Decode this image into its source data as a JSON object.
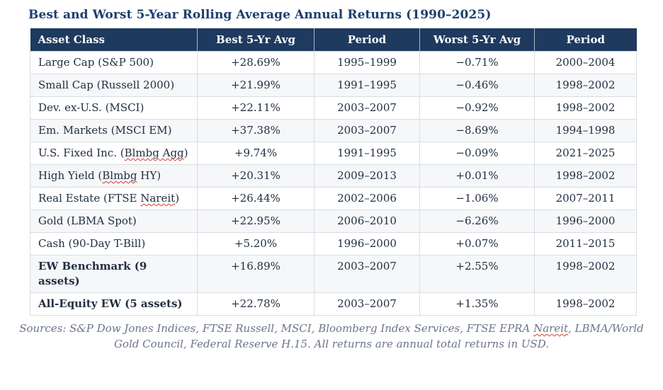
{
  "colors": {
    "header_bg": "#1e3a5f",
    "title": "#1e3d6e",
    "body_text": "#212f42",
    "alt_row": "#f6f7f9",
    "cell_border": "#d9dce1",
    "footer_text": "#6b7689",
    "spellcheck_squiggle": "#d93a2b"
  },
  "chart_data": {
    "type": "table",
    "title": "Best and Worst 5-Year Rolling Average Annual Returns (1990–2025)",
    "columns": [
      "Asset Class",
      "Best 5-Yr Avg",
      "Period",
      "Worst 5-Yr Avg",
      "Period"
    ],
    "rows": [
      {
        "asset": "Large Cap (S&P 500)",
        "best": "+28.69%",
        "best_period": "1995–1999",
        "worst": "−0.71%",
        "worst_period": "2000–2004",
        "bold": false,
        "misspelled": []
      },
      {
        "asset": "Small Cap (Russell 2000)",
        "best": "+21.99%",
        "best_period": "1991–1995",
        "worst": "−0.46%",
        "worst_period": "1998–2002",
        "bold": false,
        "misspelled": []
      },
      {
        "asset": "Dev. ex-U.S. (MSCI)",
        "best": "+22.11%",
        "best_period": "2003–2007",
        "worst": "−0.92%",
        "worst_period": "1998–2002",
        "bold": false,
        "misspelled": []
      },
      {
        "asset": "Em. Markets (MSCI EM)",
        "best": "+37.38%",
        "best_period": "2003–2007",
        "worst": "−8.69%",
        "worst_period": "1994–1998",
        "bold": false,
        "misspelled": []
      },
      {
        "asset": "U.S. Fixed Inc. (Blmbg Agg)",
        "best": "+9.74%",
        "best_period": "1991–1995",
        "worst": "−0.09%",
        "worst_period": "2021–2025",
        "bold": false,
        "misspelled": [
          "Blmbg Agg"
        ]
      },
      {
        "asset": "High Yield (Blmbg HY)",
        "best": "+20.31%",
        "best_period": "2009–2013",
        "worst": "+0.01%",
        "worst_period": "1998–2002",
        "bold": false,
        "misspelled": [
          "Blmbg"
        ]
      },
      {
        "asset": "Real Estate (FTSE Nareit)",
        "best": "+26.44%",
        "best_period": "2002–2006",
        "worst": "−1.06%",
        "worst_period": "2007–2011",
        "bold": false,
        "misspelled": [
          "Nareit"
        ]
      },
      {
        "asset": "Gold (LBMA Spot)",
        "best": "+22.95%",
        "best_period": "2006–2010",
        "worst": "−6.26%",
        "worst_period": "1996–2000",
        "bold": false,
        "misspelled": []
      },
      {
        "asset": "Cash (90-Day T-Bill)",
        "best": "+5.20%",
        "best_period": "1996–2000",
        "worst": "+0.07%",
        "worst_period": "2011–2015",
        "bold": false,
        "misspelled": []
      },
      {
        "asset": "EW Benchmark (9 assets)",
        "best": "+16.89%",
        "best_period": "2003–2007",
        "worst": "+2.55%",
        "worst_period": "1998–2002",
        "bold": true,
        "misspelled": [],
        "wrap": true
      },
      {
        "asset": "All-Equity EW (5 assets)",
        "best": "+22.78%",
        "best_period": "2003–2007",
        "worst": "+1.35%",
        "worst_period": "1998–2002",
        "bold": true,
        "misspelled": []
      }
    ],
    "layout": {
      "alternating_rows": true,
      "header_style": "dark-navy",
      "grid": true
    }
  },
  "footer": {
    "text": "Sources: S&P Dow Jones Indices, FTSE Russell, MSCI, Bloomberg Index Services, FTSE EPRA Nareit, LBMA/World Gold Council, Federal Reserve H.15. All returns are annual total returns in USD.",
    "misspelled": [
      "Nareit"
    ]
  }
}
